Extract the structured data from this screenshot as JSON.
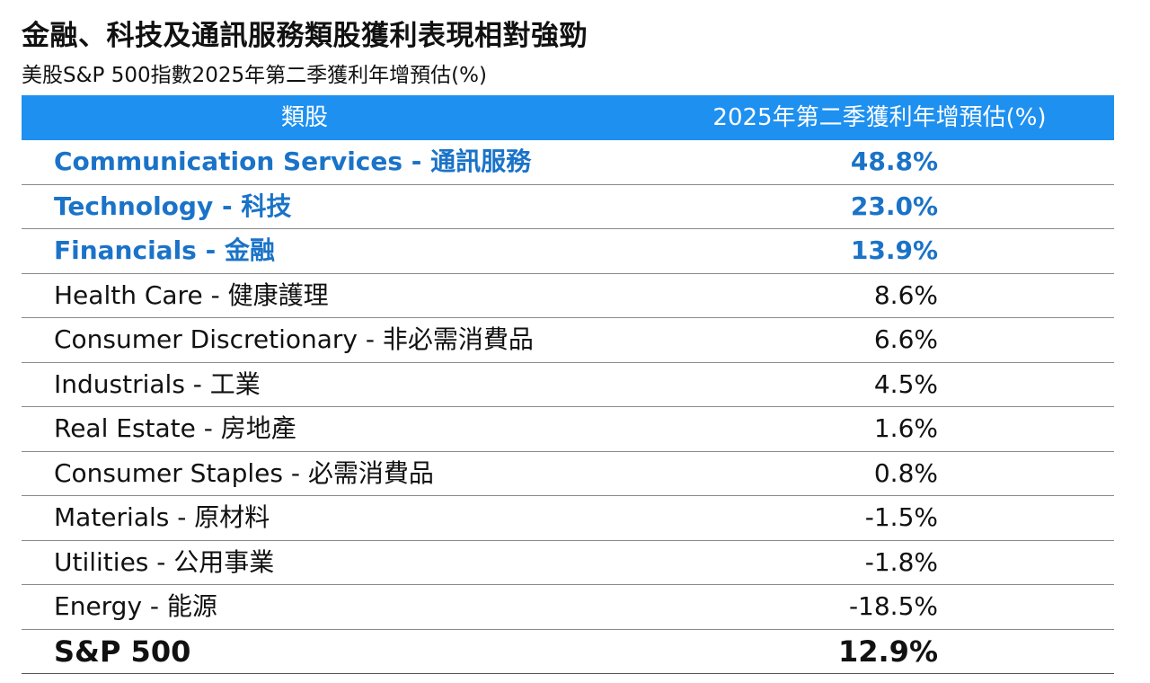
{
  "title": "金融、科技及通訊服務類股獲利表現相對強勁",
  "subtitle": "美股S&P 500指數2025年第二季獲利年增預估(%)",
  "colors": {
    "header_bg": "#1e90f0",
    "highlight_text": "#1a73c8",
    "rule": "#8a8a8a"
  },
  "chart_data": {
    "type": "table",
    "columns": [
      "類股",
      "2025年第二季獲利年增預估(%)"
    ],
    "rows": [
      {
        "category": "Communication Services - 通訊服務",
        "value": "48.8%",
        "highlight": true
      },
      {
        "category": "Technology - 科技",
        "value": "23.0%",
        "highlight": true
      },
      {
        "category": "Financials - 金融",
        "value": "13.9%",
        "highlight": true
      },
      {
        "category": "Health Care - 健康護理",
        "value": "8.6%",
        "highlight": false
      },
      {
        "category": "Consumer Discretionary - 非必需消費品",
        "value": "6.6%",
        "highlight": false
      },
      {
        "category": "Industrials - 工業",
        "value": "4.5%",
        "highlight": false
      },
      {
        "category": "Real Estate - 房地產",
        "value": "1.6%",
        "highlight": false
      },
      {
        "category": "Consumer Staples - 必需消費品",
        "value": "0.8%",
        "highlight": false
      },
      {
        "category": "Materials - 原材料",
        "value": "-1.5%",
        "highlight": false
      },
      {
        "category": "Utilities - 公用事業",
        "value": "-1.8%",
        "highlight": false
      },
      {
        "category": "Energy - 能源",
        "value": "-18.5%",
        "highlight": false
      }
    ],
    "total": {
      "category": "S&P 500",
      "value": "12.9%"
    }
  }
}
